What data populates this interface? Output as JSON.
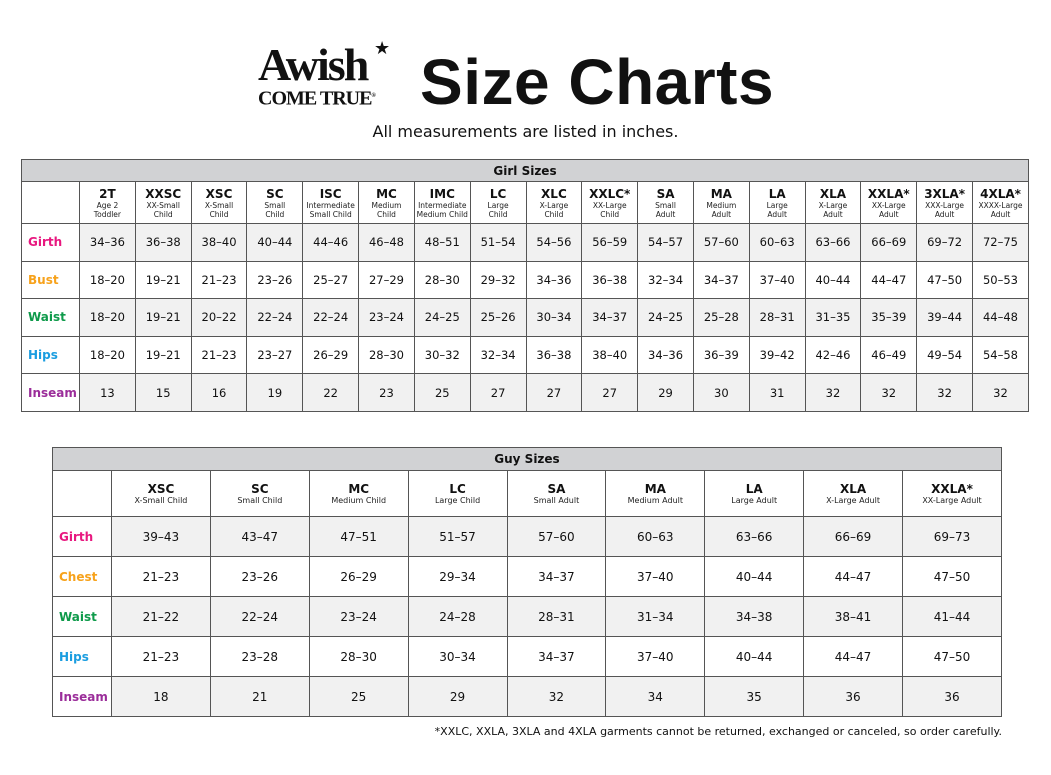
{
  "logo": {
    "line1": "Awish",
    "line2": "COME TRUE",
    "mark": "®"
  },
  "header": {
    "title": "Size Charts",
    "subtitle": "All measurements are listed in inches."
  },
  "colors": {
    "girth": "#e8177f",
    "bust": "#f7a21b",
    "chest": "#f7a21b",
    "waist": "#0e9a4a",
    "hips": "#1a9de0",
    "inseam": "#9b2d9a",
    "caption_bg": "#d1d2d4",
    "alt_row": "#f1f1f1"
  },
  "girl": {
    "caption": "Girl Sizes",
    "sizes": [
      {
        "code": "2T",
        "desc1": "Age 2",
        "desc2": "Toddler"
      },
      {
        "code": "XXSC",
        "desc1": "XX-Small",
        "desc2": "Child"
      },
      {
        "code": "XSC",
        "desc1": "X-Small",
        "desc2": "Child"
      },
      {
        "code": "SC",
        "desc1": "Small",
        "desc2": "Child"
      },
      {
        "code": "ISC",
        "desc1": "Intermediate",
        "desc2": "Small Child"
      },
      {
        "code": "MC",
        "desc1": "Medium",
        "desc2": "Child"
      },
      {
        "code": "IMC",
        "desc1": "Intermediate",
        "desc2": "Medium Child"
      },
      {
        "code": "LC",
        "desc1": "Large",
        "desc2": "Child"
      },
      {
        "code": "XLC",
        "desc1": "X-Large",
        "desc2": "Child"
      },
      {
        "code": "XXLC*",
        "desc1": "XX-Large",
        "desc2": "Child"
      },
      {
        "code": "SA",
        "desc1": "Small",
        "desc2": "Adult"
      },
      {
        "code": "MA",
        "desc1": "Medium",
        "desc2": "Adult"
      },
      {
        "code": "LA",
        "desc1": "Large",
        "desc2": "Adult"
      },
      {
        "code": "XLA",
        "desc1": "X-Large",
        "desc2": "Adult"
      },
      {
        "code": "XXLA*",
        "desc1": "XX-Large",
        "desc2": "Adult"
      },
      {
        "code": "3XLA*",
        "desc1": "XXX-Large",
        "desc2": "Adult"
      },
      {
        "code": "4XLA*",
        "desc1": "XXXX-Large",
        "desc2": "Adult"
      }
    ],
    "rows": [
      {
        "label": "Girth",
        "color": "girth",
        "values": [
          "34–36",
          "36–38",
          "38–40",
          "40–44",
          "44–46",
          "46–48",
          "48–51",
          "51–54",
          "54–56",
          "56–59",
          "54–57",
          "57–60",
          "60–63",
          "63–66",
          "66–69",
          "69–72",
          "72–75"
        ]
      },
      {
        "label": "Bust",
        "color": "bust",
        "values": [
          "18–20",
          "19–21",
          "21–23",
          "23–26",
          "25–27",
          "27–29",
          "28–30",
          "29–32",
          "34–36",
          "36–38",
          "32–34",
          "34–37",
          "37–40",
          "40–44",
          "44–47",
          "47–50",
          "50–53"
        ]
      },
      {
        "label": "Waist",
        "color": "waist",
        "values": [
          "18–20",
          "19–21",
          "20–22",
          "22–24",
          "22–24",
          "23–24",
          "24–25",
          "25–26",
          "30–34",
          "34–37",
          "24–25",
          "25–28",
          "28–31",
          "31–35",
          "35–39",
          "39–44",
          "44–48"
        ]
      },
      {
        "label": "Hips",
        "color": "hips",
        "values": [
          "18–20",
          "19–21",
          "21–23",
          "23–27",
          "26–29",
          "28–30",
          "30–32",
          "32–34",
          "36–38",
          "38–40",
          "34–36",
          "36–39",
          "39–42",
          "42–46",
          "46–49",
          "49–54",
          "54–58"
        ]
      },
      {
        "label": "Inseam",
        "color": "inseam",
        "values": [
          "13",
          "15",
          "16",
          "19",
          "22",
          "23",
          "25",
          "27",
          "27",
          "27",
          "29",
          "30",
          "31",
          "32",
          "32",
          "32",
          "32"
        ]
      }
    ]
  },
  "guy": {
    "caption": "Guy Sizes",
    "sizes": [
      {
        "code": "XSC",
        "desc1": "X-Small Child"
      },
      {
        "code": "SC",
        "desc1": "Small Child"
      },
      {
        "code": "MC",
        "desc1": "Medium Child"
      },
      {
        "code": "LC",
        "desc1": "Large Child"
      },
      {
        "code": "SA",
        "desc1": "Small Adult"
      },
      {
        "code": "MA",
        "desc1": "Medium Adult"
      },
      {
        "code": "LA",
        "desc1": "Large Adult"
      },
      {
        "code": "XLA",
        "desc1": "X-Large Adult"
      },
      {
        "code": "XXLA*",
        "desc1": "XX-Large Adult"
      }
    ],
    "rows": [
      {
        "label": "Girth",
        "color": "girth",
        "values": [
          "39–43",
          "43–47",
          "47–51",
          "51–57",
          "57–60",
          "60–63",
          "63–66",
          "66–69",
          "69–73"
        ]
      },
      {
        "label": "Chest",
        "color": "chest",
        "values": [
          "21–23",
          "23–26",
          "26–29",
          "29–34",
          "34–37",
          "37–40",
          "40–44",
          "44–47",
          "47–50"
        ]
      },
      {
        "label": "Waist",
        "color": "waist",
        "values": [
          "21–22",
          "22–24",
          "23–24",
          "24–28",
          "28–31",
          "31–34",
          "34–38",
          "38–41",
          "41–44"
        ]
      },
      {
        "label": "Hips",
        "color": "hips",
        "values": [
          "21–23",
          "23–28",
          "28–30",
          "30–34",
          "34–37",
          "37–40",
          "40–44",
          "44–47",
          "47–50"
        ]
      },
      {
        "label": "Inseam",
        "color": "inseam",
        "values": [
          "18",
          "21",
          "25",
          "29",
          "32",
          "34",
          "35",
          "36",
          "36"
        ]
      }
    ]
  },
  "footnote": "*XXLC, XXLA, 3XLA and 4XLA garments cannot be returned, exchanged or canceled, so order carefully."
}
